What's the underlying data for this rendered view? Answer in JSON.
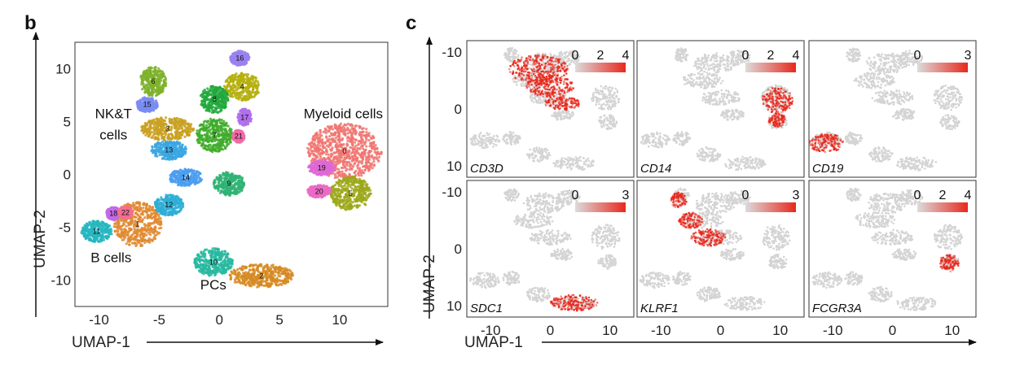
{
  "panels": {
    "b_label": "b",
    "c_label": "c"
  },
  "colors": {
    "expr_low": "#dcdcdc",
    "expr_high": "#e8281c",
    "background_points": "#d4d4d4"
  },
  "chart_data": [
    {
      "type": "scatter",
      "panel": "b",
      "xlabel": "UMAP-1",
      "ylabel": "UMAP-2",
      "xlim": [
        -12,
        14
      ],
      "ylim": [
        -12.5,
        12.5
      ],
      "xticks": [
        -10,
        -5,
        0,
        5,
        10
      ],
      "yticks": [
        10,
        5,
        0,
        -5,
        -10
      ],
      "group_labels": [
        {
          "text": "NK&T",
          "x": -8.8,
          "y": 5.3
        },
        {
          "text": "cells",
          "x": -8.8,
          "y": 3.3
        },
        {
          "text": "Myeloid cells",
          "x": 10.3,
          "y": 5.3
        },
        {
          "text": "B cells",
          "x": -9.0,
          "y": -8.3
        },
        {
          "text": "PCs",
          "x": -0.5,
          "y": -10.9
        }
      ],
      "clusters": [
        {
          "id": "0",
          "x": 10.4,
          "y": 2.2,
          "rx": 3.1,
          "ry": 2.6,
          "color": "#f07470"
        },
        {
          "id": "1",
          "x": -6.8,
          "y": -4.7,
          "rx": 2.0,
          "ry": 2.1,
          "color": "#e08a30"
        },
        {
          "id": "2",
          "x": 3.5,
          "y": -9.6,
          "rx": 2.7,
          "ry": 1.1,
          "color": "#d68a22"
        },
        {
          "id": "3",
          "x": -4.3,
          "y": 4.3,
          "rx": 2.2,
          "ry": 1.1,
          "color": "#c9a020"
        },
        {
          "id": "4",
          "x": 1.9,
          "y": 8.3,
          "rx": 1.5,
          "ry": 1.3,
          "color": "#b5b00e"
        },
        {
          "id": "5",
          "x": 10.9,
          "y": -1.8,
          "rx": 1.7,
          "ry": 1.6,
          "color": "#9ca81a"
        },
        {
          "id": "6",
          "x": -5.5,
          "y": 8.8,
          "rx": 1.1,
          "ry": 1.4,
          "color": "#7cb22a"
        },
        {
          "id": "7",
          "x": -0.4,
          "y": 3.7,
          "rx": 1.5,
          "ry": 1.6,
          "color": "#3fab2c"
        },
        {
          "id": "8",
          "x": -0.4,
          "y": 7.1,
          "rx": 1.2,
          "ry": 1.3,
          "color": "#22a83c"
        },
        {
          "id": "9",
          "x": 0.8,
          "y": -0.9,
          "rx": 1.3,
          "ry": 1.1,
          "color": "#2fb374"
        },
        {
          "id": "10",
          "x": -0.5,
          "y": -8.3,
          "rx": 1.6,
          "ry": 1.3,
          "color": "#28b8a0"
        },
        {
          "id": "11",
          "x": -10.2,
          "y": -5.4,
          "rx": 1.3,
          "ry": 1.0,
          "color": "#26b6c0"
        },
        {
          "id": "12",
          "x": -4.2,
          "y": -2.9,
          "rx": 1.2,
          "ry": 1.0,
          "color": "#2eaed6"
        },
        {
          "id": "13",
          "x": -4.2,
          "y": 2.3,
          "rx": 1.5,
          "ry": 0.9,
          "color": "#3aa6e0"
        },
        {
          "id": "14",
          "x": -2.8,
          "y": -0.3,
          "rx": 1.4,
          "ry": 0.8,
          "color": "#4a9ef0"
        },
        {
          "id": "15",
          "x": -6.0,
          "y": 6.6,
          "rx": 0.9,
          "ry": 0.7,
          "color": "#7a8cf2"
        },
        {
          "id": "16",
          "x": 1.7,
          "y": 11.0,
          "rx": 0.8,
          "ry": 0.7,
          "color": "#9a80f0"
        },
        {
          "id": "17",
          "x": 2.1,
          "y": 5.4,
          "rx": 0.6,
          "ry": 0.8,
          "color": "#b070ec"
        },
        {
          "id": "18",
          "x": -8.8,
          "y": -3.7,
          "rx": 0.6,
          "ry": 0.6,
          "color": "#c26ae6"
        },
        {
          "id": "19",
          "x": 8.5,
          "y": 0.6,
          "rx": 1.1,
          "ry": 0.7,
          "color": "#de68d6"
        },
        {
          "id": "20",
          "x": 8.3,
          "y": -1.6,
          "rx": 1.0,
          "ry": 0.6,
          "color": "#ea6ac4"
        },
        {
          "id": "21",
          "x": 1.6,
          "y": 3.6,
          "rx": 0.5,
          "ry": 0.6,
          "color": "#f06aa8"
        },
        {
          "id": "22",
          "x": -7.8,
          "y": -3.6,
          "rx": 0.6,
          "ry": 0.6,
          "color": "#f27090"
        }
      ]
    },
    {
      "type": "scatter",
      "panel": "c",
      "xlabel": "UMAP-1",
      "ylabel": "UMAP-2",
      "xlim": [
        -14,
        14
      ],
      "ylim": [
        -12,
        12
      ],
      "xticks": [
        -10,
        0,
        10
      ],
      "yticks": [
        -10,
        0,
        10
      ],
      "facets": [
        {
          "gene": "CD3D",
          "legend_ticks": [
            "0",
            "2",
            "4"
          ],
          "highlight": "T"
        },
        {
          "gene": "CD14",
          "legend_ticks": [
            "0",
            "2",
            "4"
          ],
          "highlight": "Myeloid"
        },
        {
          "gene": "CD19",
          "legend_ticks": [
            "0",
            "3"
          ],
          "highlight": "B"
        },
        {
          "gene": "SDC1",
          "legend_ticks": [
            "0",
            "3"
          ],
          "highlight": "PC"
        },
        {
          "gene": "KLRF1",
          "legend_ticks": [
            "0",
            "3"
          ],
          "highlight": "NK"
        },
        {
          "gene": "FCGR3A",
          "legend_ticks": [
            "0",
            "2",
            "4"
          ],
          "highlight": "Mono16"
        }
      ]
    }
  ]
}
